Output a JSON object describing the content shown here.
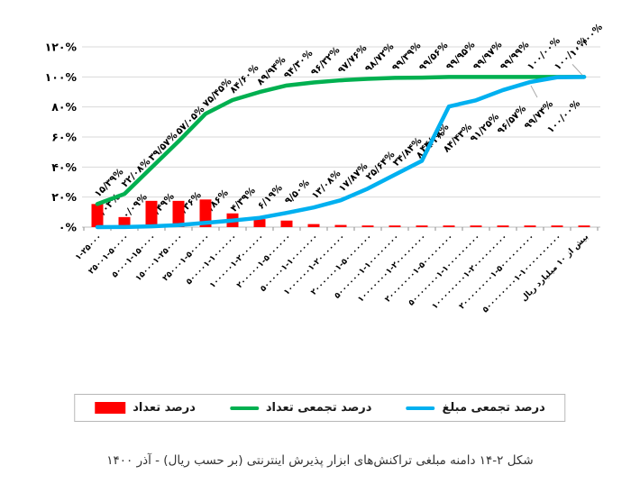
{
  "caption": "شکل ۲-۱۴ دامنه مبلغی تراکنش‌های ابزار پذیرش اینترنتی (بر حسب ریال) - آذر ۱۴۰۰",
  "legend": {
    "count_percent": "درصد تعداد",
    "cumulative_count_percent": "درصد تجمعی تعداد",
    "cumulative_amount_percent": "درصد تجمعی مبلغ"
  },
  "colors": {
    "bar": "#ff0000",
    "cumulative_count_line": "#00b050",
    "cumulative_amount_line": "#00b0f0",
    "grid": "#d9d9d9",
    "axis": "#bfbfbf",
    "leader": "#a6a6a6",
    "text": "#000000"
  },
  "chart_data": {
    "type": "bar",
    "combo": "bar + two cumulative percentage lines",
    "title": "",
    "xlabel": "",
    "ylabel": "",
    "ylim": [
      0,
      120
    ],
    "grid": "horizontal",
    "legend_position": "bottom",
    "categories": [
      "۱-۲۵۰۰۰",
      "۲۵۰۰۱-۵۰۰۰۰",
      "۵۰۰۰۱-۱۵۰۰۰۰",
      "۱۵۰۰۰۱-۲۵۰۰۰۰",
      "۲۵۰۰۰۱-۵۰۰۰۰۰",
      "۵۰۰۰۰۱-۱۰۰۰۰۰۰",
      "۱۰۰۰۰۰۱-۲۰۰۰۰۰۰",
      "۲۰۰۰۰۰۱-۵۰۰۰۰۰۰",
      "۵۰۰۰۰۰۱-۱۰۰۰۰۰۰۰",
      "۱۰۰۰۰۰۰۱-۲۰۰۰۰۰۰۰",
      "۲۰۰۰۰۰۰۱-۵۰۰۰۰۰۰۰",
      "۵۰۰۰۰۰۰۱-۱۰۰۰۰۰۰۰۰",
      "۱۰۰۰۰۰۰۰۱-۲۰۰۰۰۰۰۰۰",
      "۲۰۰۰۰۰۰۰۱-۵۰۰۰۰۰۰۰۰",
      "۵۰۰۰۰۰۰۰۱-۱۰۰۰۰۰۰۰۰۰",
      "۱۰۰۰۰۰۰۰۰۱-۲۰۰۰۰۰۰۰۰۰",
      "۲۰۰۰۰۰۰۰۰۱-۵۰۰۰۰۰۰۰۰۰",
      "۵۰۰۰۰۰۰۰۰۱-۱۰۰۰۰۰۰۰۰۰۰",
      "بیش از ۱۰ میلیارد ریال"
    ],
    "y_axis": {
      "tick_values": [
        0,
        20,
        40,
        60,
        80,
        100,
        120
      ],
      "tick_labels": [
        "۰%",
        "۲۰%",
        "۴۰%",
        "۶۰%",
        "۸۰%",
        "۱۰۰%",
        "۱۲۰%"
      ]
    },
    "series": [
      {
        "name": "درصد تعداد",
        "type": "bar",
        "color": "#ff0000",
        "values": [
          15.39,
          6.69,
          17.49,
          17.48,
          18.4,
          9.15,
          5.34,
          4.36,
          2.02,
          1.44,
          0.96,
          0.67,
          0.17,
          0.39,
          0.02,
          0.02,
          0.01,
          0.01,
          0.01
        ],
        "labels": []
      },
      {
        "name": "درصد تجمعی تعداد",
        "type": "line",
        "color": "#00b050",
        "values": [
          15.39,
          22.08,
          39.57,
          57.05,
          75.45,
          84.6,
          89.94,
          94.3,
          96.32,
          97.76,
          98.72,
          99.39,
          99.56,
          99.95,
          99.97,
          99.99,
          100.0,
          100.0,
          100.0
        ],
        "labels": [
          "۱۵/۳۹%",
          "۲۲/۰۸%",
          "۳۹/۵۷%",
          "۵۷/۰۵%",
          "۷۵/۴۵%",
          "۸۴/۶۰%",
          "۸۹/۹۴%",
          "۹۴/۳۰%",
          "۹۶/۳۲%",
          "۹۷/۷۶%",
          "۹۸/۷۲%",
          "۹۹/۳۹%",
          "۹۹/۵۶%",
          "۹۹/۹۵%",
          "۹۹/۹۷%",
          "۹۹/۹۹%",
          "۱۰۰/۰۰%",
          "۱۰۰/۰۰%",
          "۱۰۰/۰۰%"
        ]
      },
      {
        "name": "درصد تجمعی مبلغ",
        "type": "line",
        "color": "#00b0f0",
        "values": [
          0.03,
          0.09,
          0.49,
          1.36,
          2.86,
          4.39,
          6.19,
          9.5,
          13.08,
          17.87,
          25.64,
          34.84,
          44.08,
          80.31,
          84.43,
          91.25,
          96.57,
          99.74,
          100.0
        ],
        "labels": [
          "۰/۰۳%",
          "۰/۰۹%",
          "۰/۴۹%",
          "۱/۳۶%",
          "۲/۸۶%",
          "۴/۳۹%",
          "۶/۱۹%",
          "۹/۵۰%",
          "۱۳/۰۸%",
          "۱۷/۸۷%",
          "۲۵/۶۴%",
          "۳۴/۸۴%",
          "۴۴/۰۸%",
          "۸۰/۳۱%",
          "۸۴/۴۳%",
          "۹۱/۲۵%",
          "۹۶/۵۷%",
          "۹۹/۷۴%",
          "۱۰۰/۰۰%"
        ]
      }
    ]
  }
}
